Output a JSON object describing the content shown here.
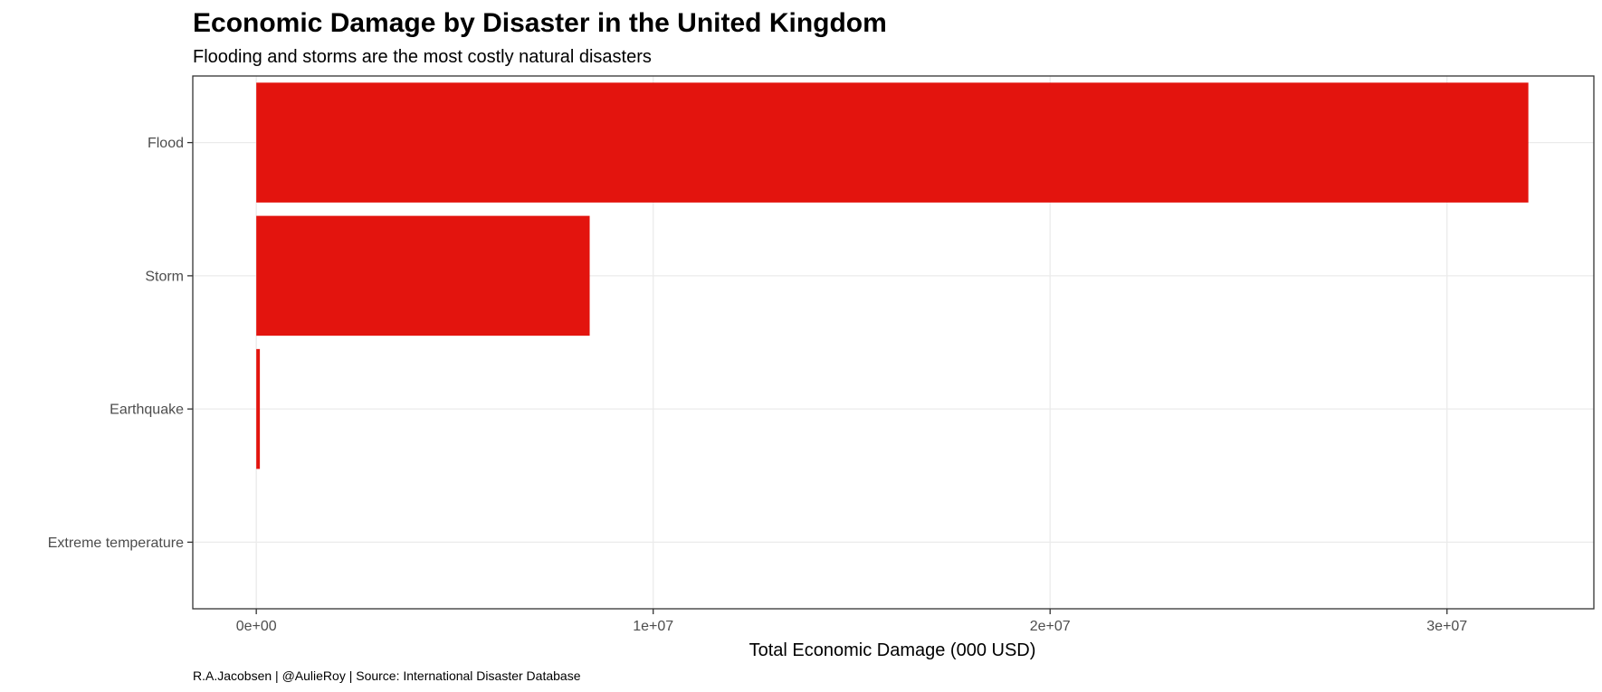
{
  "chart_data": {
    "type": "bar",
    "orientation": "horizontal",
    "title": "Economic Damage by Disaster in the United Kingdom",
    "subtitle": "Flooding and storms are the most costly natural disasters",
    "xlabel": "Total Economic Damage (000 USD)",
    "ylabel": "",
    "caption": "R.A.Jacobsen | @AulieRoy | Source: International Disaster Database",
    "categories": [
      "Flood",
      "Storm",
      "Earthquake",
      "Extreme temperature"
    ],
    "values": [
      32050000,
      8400000,
      90000,
      0
    ],
    "xlim": [
      -1600000,
      33700000
    ],
    "x_ticks": [
      0,
      10000000,
      20000000,
      30000000
    ],
    "x_tick_labels": [
      "0e+00",
      "1e+07",
      "2e+07",
      "3e+07"
    ],
    "bar_color": "#e3140e",
    "grid": true,
    "legend": "none"
  }
}
